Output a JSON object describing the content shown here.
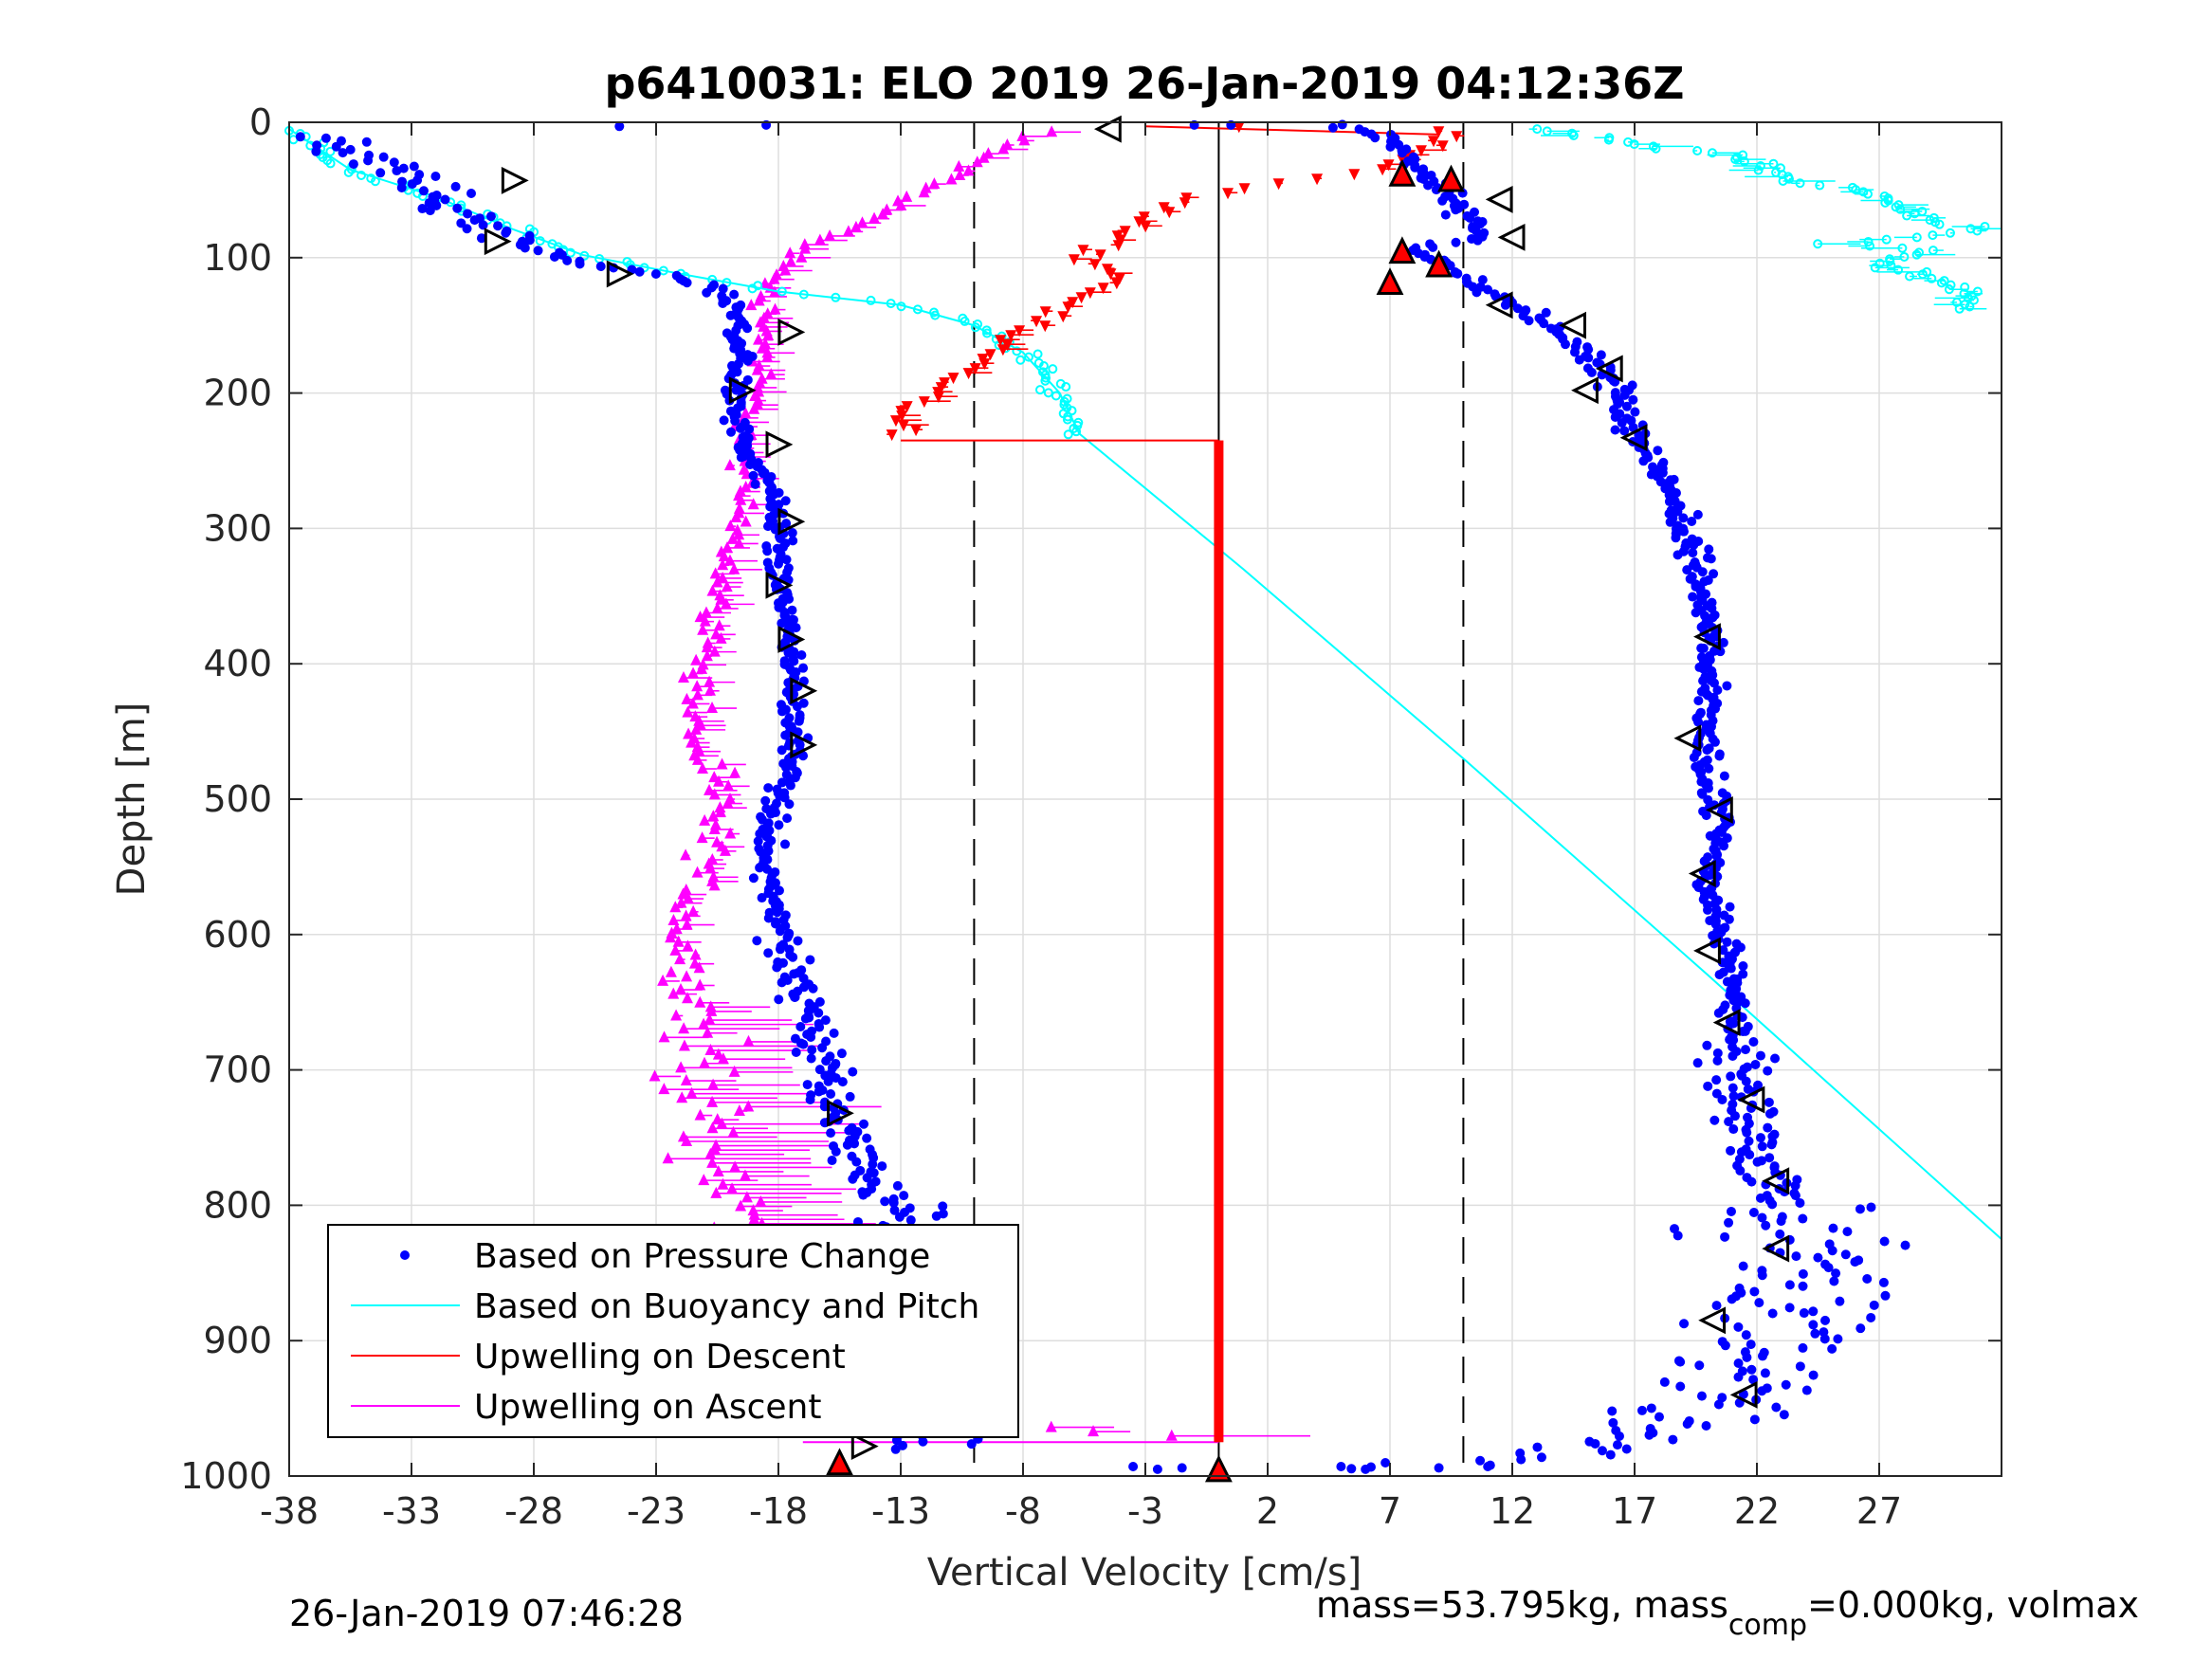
{
  "chart_data": {
    "type": "scatter",
    "title": "p6410031: ELO 2019 26-Jan-2019 04:12:36Z",
    "xlabel": "Vertical Velocity [cm/s]",
    "ylabel": "Depth [m]",
    "xlim": [
      -38,
      32
    ],
    "ylim": [
      1000,
      0
    ],
    "x_ticks": [
      "-38",
      "-33",
      "-28",
      "-23",
      "-18",
      "-13",
      "-8",
      "-3",
      "2",
      "7",
      "12",
      "17",
      "22",
      "27"
    ],
    "x_tick_values": [
      -38,
      -33,
      -28,
      -23,
      -18,
      -13,
      -8,
      -3,
      2,
      7,
      12,
      17,
      22,
      27
    ],
    "y_ticks": [
      "0",
      "100",
      "200",
      "300",
      "400",
      "500",
      "600",
      "700",
      "800",
      "900",
      "1000"
    ],
    "y_tick_values": [
      0,
      100,
      200,
      300,
      400,
      500,
      600,
      700,
      800,
      900,
      1000
    ],
    "grid": true,
    "y_direction": "reversed",
    "vertical_reference_lines": [
      -10,
      0,
      10
    ],
    "legend_position": "lower-left",
    "colors": {
      "pressure": "#0000ff",
      "buoyancy": "#00ffff",
      "upwelling_descent": "#ff0000",
      "upwelling_ascent": "#ff00ff",
      "markers": "#000000"
    },
    "series": [
      {
        "name": "Based on Pressure Change",
        "style": "dots",
        "color": "#0000ff",
        "descent_profile": [
          [
            -37,
            10
          ],
          [
            -33,
            40
          ],
          [
            -31,
            70
          ],
          [
            -29,
            90
          ],
          [
            -26,
            105
          ],
          [
            -22,
            115
          ],
          [
            -20,
            130
          ],
          [
            -19.5,
            160
          ],
          [
            -19.8,
            200
          ],
          [
            -19.5,
            240
          ],
          [
            -18,
            280
          ],
          [
            -18,
            330
          ],
          [
            -17.5,
            380
          ],
          [
            -17.3,
            430
          ],
          [
            -17.5,
            480
          ],
          [
            -18.5,
            520
          ],
          [
            -18.3,
            570
          ],
          [
            -17.5,
            620
          ],
          [
            -16.5,
            680
          ],
          [
            -15.5,
            740
          ],
          [
            -14,
            790
          ],
          [
            -12.5,
            840
          ],
          [
            -11.5,
            890
          ],
          [
            -11,
            940
          ],
          [
            -11.5,
            980
          ]
        ],
        "ascent_profile": [
          [
            5,
            2
          ],
          [
            7,
            10
          ],
          [
            8,
            30
          ],
          [
            9,
            50
          ],
          [
            10,
            70
          ],
          [
            11,
            85
          ],
          [
            8,
            95
          ],
          [
            10,
            115
          ],
          [
            12,
            135
          ],
          [
            14.5,
            160
          ],
          [
            16,
            190
          ],
          [
            17,
            230
          ],
          [
            18.5,
            270
          ],
          [
            19.5,
            320
          ],
          [
            20,
            370
          ],
          [
            20,
            420
          ],
          [
            19.8,
            470
          ],
          [
            20.5,
            520
          ],
          [
            20,
            570
          ],
          [
            21,
            620
          ],
          [
            21,
            670
          ],
          [
            21.5,
            720
          ],
          [
            22,
            760
          ],
          [
            23,
            800
          ],
          [
            24,
            850
          ],
          [
            23,
            900
          ],
          [
            20,
            950
          ],
          [
            15,
            980
          ],
          [
            8,
            995
          ]
        ]
      },
      {
        "name": "Based on Buoyancy and Pitch",
        "style": "line+circles",
        "color": "#00ffff",
        "points": [
          [
            -38,
            5
          ],
          [
            -35.5,
            35
          ],
          [
            -32,
            55
          ],
          [
            -29,
            78
          ],
          [
            -26,
            98
          ],
          [
            -22,
            112
          ],
          [
            -18,
            125
          ],
          [
            -13,
            135
          ],
          [
            -10,
            150
          ],
          [
            -8,
            170
          ],
          [
            -6.5,
            200
          ],
          [
            -5.7,
            230
          ],
          [
            1,
            330
          ],
          [
            10,
            470
          ],
          [
            20,
            630
          ],
          [
            32,
            825
          ]
        ],
        "upper_right": [
          [
            13,
            5
          ],
          [
            17,
            15
          ],
          [
            21,
            25
          ],
          [
            23,
            40
          ],
          [
            27,
            55
          ],
          [
            29,
            70
          ],
          [
            31,
            80
          ],
          [
            25,
            90
          ],
          [
            29,
            95
          ],
          [
            27,
            105
          ],
          [
            30,
            120
          ],
          [
            31,
            138
          ]
        ]
      },
      {
        "name": "Upwelling on Descent",
        "style": "line+triangles-down",
        "color": "#ff0000",
        "points": [
          [
            -13,
            232
          ],
          [
            -12.5,
            210
          ],
          [
            -11,
            195
          ],
          [
            -10,
            180
          ],
          [
            -8.5,
            160
          ],
          [
            -7,
            140
          ],
          [
            -5,
            125
          ],
          [
            -4,
            115
          ],
          [
            -5.5,
            100
          ],
          [
            -4,
            80
          ],
          [
            -2.5,
            65
          ],
          [
            0.5,
            50
          ],
          [
            5,
            40
          ],
          [
            7,
            30
          ],
          [
            9,
            15
          ],
          [
            9,
            5
          ],
          [
            -3,
            2
          ]
        ],
        "constant_segment": [
          [
            0,
            235
          ],
          [
            0,
            975
          ]
        ],
        "bottom": [
          [
            0,
            995
          ]
        ]
      },
      {
        "name": "Upwelling on Ascent",
        "style": "line+triangles-up",
        "color": "#ff00ff",
        "points": [
          [
            -6,
            5
          ],
          [
            -8,
            10
          ],
          [
            -10,
            30
          ],
          [
            -12,
            50
          ],
          [
            -14,
            70
          ],
          [
            -16,
            85
          ],
          [
            -17.5,
            100
          ],
          [
            -18.5,
            125
          ],
          [
            -18.5,
            160
          ],
          [
            -19,
            200
          ],
          [
            -19.5,
            250
          ],
          [
            -19.5,
            300
          ],
          [
            -20.5,
            350
          ],
          [
            -21,
            400
          ],
          [
            -21.5,
            450
          ],
          [
            -20.5,
            500
          ],
          [
            -21,
            550
          ],
          [
            -22,
            600
          ],
          [
            -21.5,
            650
          ],
          [
            -21,
            700
          ],
          [
            -21,
            750
          ],
          [
            -19.5,
            800
          ],
          [
            -18.5,
            850
          ],
          [
            -18,
            900
          ],
          [
            -17,
            950
          ],
          [
            0,
            975
          ]
        ]
      }
    ],
    "annotations": [
      {
        "label": "26-Jan-2019 07:46:28",
        "position": "bottom-left"
      },
      {
        "label": "mass=53.795kg, mass",
        "subscript": "comp",
        "suffix": "=0.000kg, volmax",
        "position": "bottom-right"
      }
    ]
  },
  "footer": {
    "timestamp": "26-Jan-2019 07:46:28",
    "mass_prefix": "mass=53.795kg, mass",
    "mass_sub": "comp",
    "mass_suffix": "=0.000kg, volmax"
  }
}
